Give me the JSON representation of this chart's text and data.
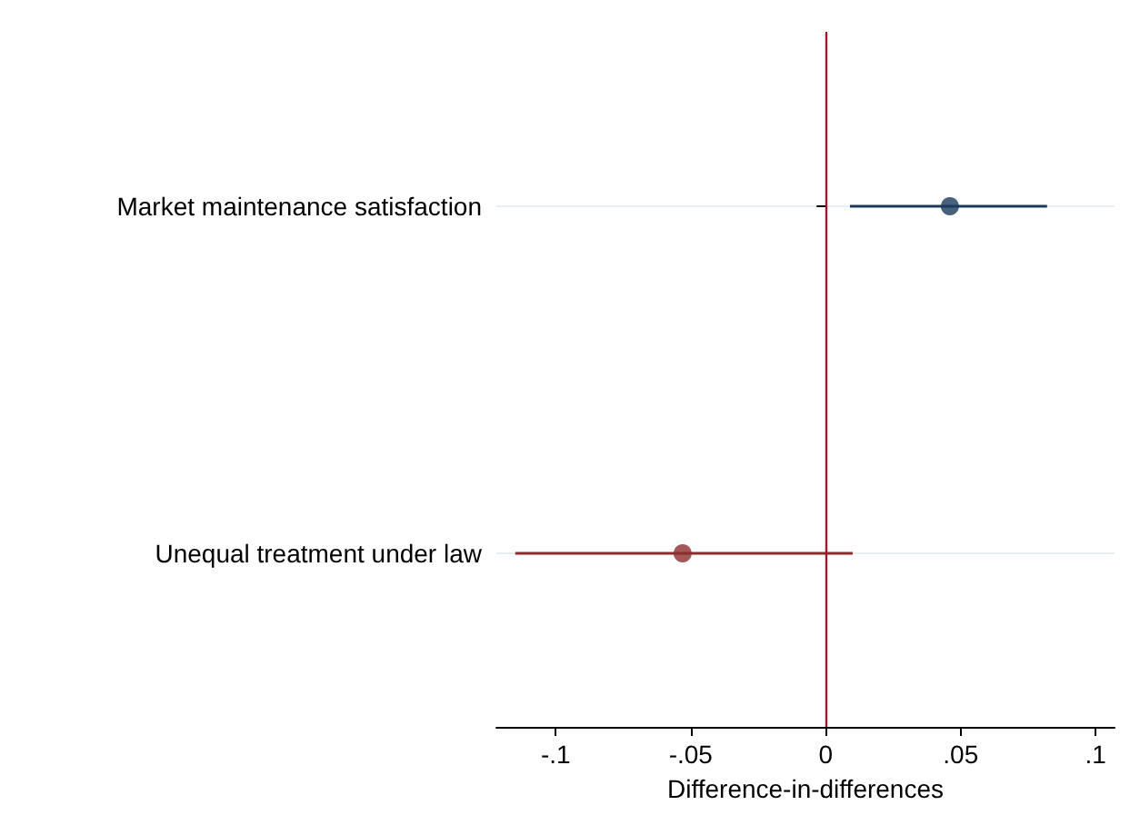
{
  "chart_data": {
    "type": "scatter",
    "orientation": "horizontal",
    "xlabel": "Difference-in-differences",
    "categories": [
      "Market maintenance satisfaction",
      "Unequal treatment under law"
    ],
    "values": [
      0.046,
      -0.053
    ],
    "errors": [
      [
        0.009,
        0.082
      ],
      [
        -0.115,
        0.01
      ]
    ],
    "colors": [
      "#1a3a5c",
      "#8c2d2d"
    ],
    "xlim": [
      -0.122,
      0.107
    ],
    "xticks": [
      {
        "value": -0.1,
        "label": "-.1"
      },
      {
        "value": -0.05,
        "label": "-.05"
      },
      {
        "value": 0,
        "label": "0"
      },
      {
        "value": 0.05,
        "label": ".05"
      },
      {
        "value": 0.1,
        "label": ".1"
      }
    ],
    "ref_lines": [
      {
        "axis": "x",
        "value": 0,
        "color": "#a3172e"
      }
    ],
    "grid": "y",
    "marker": "circle"
  }
}
